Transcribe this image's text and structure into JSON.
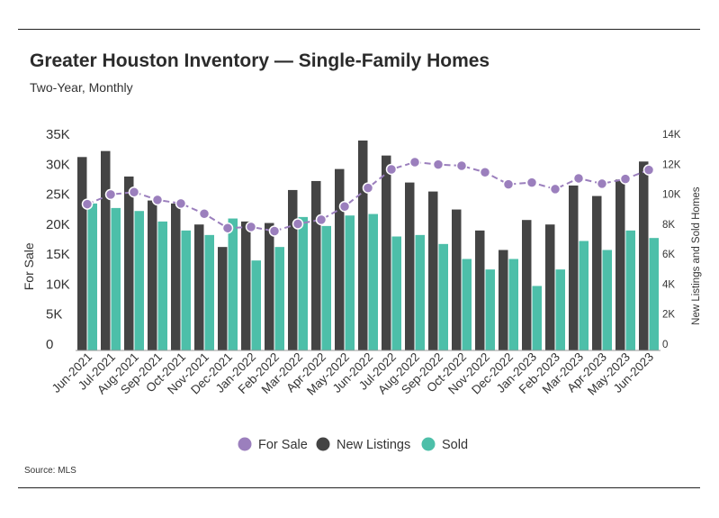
{
  "title": "Greater Houston Inventory — Single-Family Homes",
  "subtitle": "Two-Year, Monthly",
  "source": "Source:  MLS",
  "chart_data": {
    "type": "bar+line",
    "categories": [
      "Jun-2021",
      "Jul-2021",
      "Aug-2021",
      "Sep-2021",
      "Oct-2021",
      "Nov-2021",
      "Dec-2021",
      "Jan-2022",
      "Feb-2022",
      "Mar-2022",
      "Apr-2022",
      "May-2022",
      "Jun-2022",
      "Jul-2022",
      "Aug-2022",
      "Sep-2022",
      "Oct-2022",
      "Nov-2022",
      "Dec-2022",
      "Jan-2023",
      "Feb-2023",
      "Mar-2023",
      "Apr-2023",
      "May-2023",
      "Jun-2023"
    ],
    "ylabel": "For Sale",
    "y2label": "New Listings and Sold Homes",
    "ylim": [
      0,
      35000
    ],
    "y2lim": [
      0,
      14000
    ],
    "yticks": [
      "0",
      "5K",
      "10K",
      "15K",
      "20K",
      "25K",
      "30K",
      "35K"
    ],
    "y2ticks": [
      "0",
      "2K",
      "4K",
      "6K",
      "8K",
      "10K",
      "12K",
      "14K"
    ],
    "series": [
      {
        "name": "For Sale",
        "kind": "line",
        "axis": "left",
        "color": "#9b7fbd",
        "values": [
          24400,
          26000,
          26400,
          25100,
          24500,
          22800,
          20400,
          20600,
          19900,
          21100,
          21800,
          24000,
          27100,
          30200,
          31400,
          31000,
          30800,
          29700,
          27700,
          28000,
          26900,
          28700,
          27800,
          28600,
          30100
        ]
      },
      {
        "name": "New Listings",
        "kind": "bar",
        "axis": "right",
        "color": "#444444",
        "values": [
          12900,
          13300,
          11600,
          10000,
          9800,
          8400,
          6900,
          8600,
          8500,
          10700,
          11300,
          12100,
          14000,
          13000,
          11200,
          10600,
          9400,
          8000,
          6700,
          8700,
          8400,
          11000,
          10300,
          11400,
          12600
        ]
      },
      {
        "name": "Sold",
        "kind": "bar",
        "axis": "right",
        "color": "#4dbfa9",
        "values": [
          9800,
          9500,
          9300,
          8600,
          8000,
          7700,
          8800,
          6000,
          6900,
          8900,
          8300,
          9000,
          9100,
          7600,
          7700,
          7100,
          6100,
          5400,
          6100,
          4300,
          5400,
          7300,
          6700,
          8000,
          7500
        ]
      }
    ],
    "legend_position": "bottom-center",
    "grid": false
  }
}
